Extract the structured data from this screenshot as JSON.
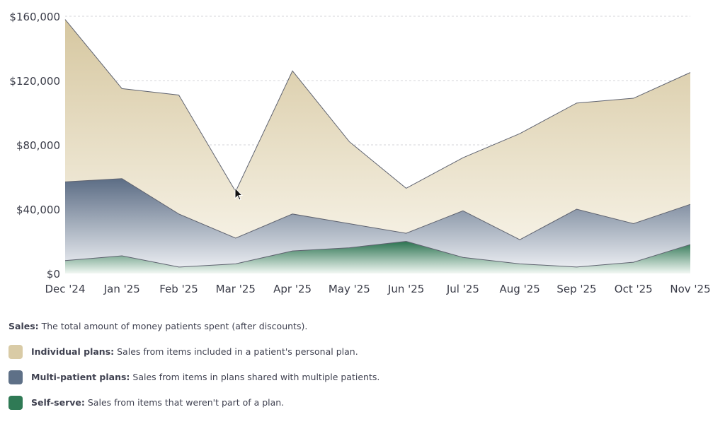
{
  "chart_data": {
    "type": "area",
    "categories": [
      "Dec '24",
      "Jan '25",
      "Feb '25",
      "Mar '25",
      "Apr '25",
      "May '25",
      "Jun '25",
      "Jul '25",
      "Aug '25",
      "Sep '25",
      "Oct '25",
      "Nov '25"
    ],
    "series": [
      {
        "name": "Individual plans",
        "key": "individual",
        "color": "#d9cba6",
        "values": [
          158000,
          115000,
          111000,
          51000,
          126000,
          82000,
          53000,
          72000,
          87000,
          106000,
          109000,
          125000
        ]
      },
      {
        "name": "Multi-patient plans",
        "key": "multi",
        "color": "#5e7087",
        "values": [
          57000,
          59000,
          37000,
          22000,
          37000,
          31000,
          25000,
          39000,
          21000,
          40000,
          31000,
          43000
        ]
      },
      {
        "name": "Self-serve",
        "key": "self",
        "color": "#2f7a55",
        "values": [
          8000,
          11000,
          4000,
          6000,
          14000,
          16000,
          20000,
          10000,
          6000,
          4000,
          7000,
          18000
        ]
      }
    ],
    "yticks": [
      "$0",
      "$40,000",
      "$80,000",
      "$120,000",
      "$160,000"
    ],
    "ytick_values": [
      0,
      40000,
      80000,
      120000,
      160000
    ],
    "ylim": [
      0,
      160000
    ],
    "grid": true,
    "xlabel": "",
    "ylabel": "",
    "title": ""
  },
  "legend": {
    "description_label": "Sales:",
    "description_text": "The total amount of money patients spent (after discounts).",
    "items": [
      {
        "label": "Individual plans:",
        "text": "Sales from items included in a patient's personal plan.",
        "color": "#d9cba6"
      },
      {
        "label": "Multi-patient plans:",
        "text": "Sales from items in plans shared with multiple patients.",
        "color": "#5e7087"
      },
      {
        "label": "Self-serve:",
        "text": "Sales from items that weren't part of a plan.",
        "color": "#2f7a55"
      }
    ]
  }
}
